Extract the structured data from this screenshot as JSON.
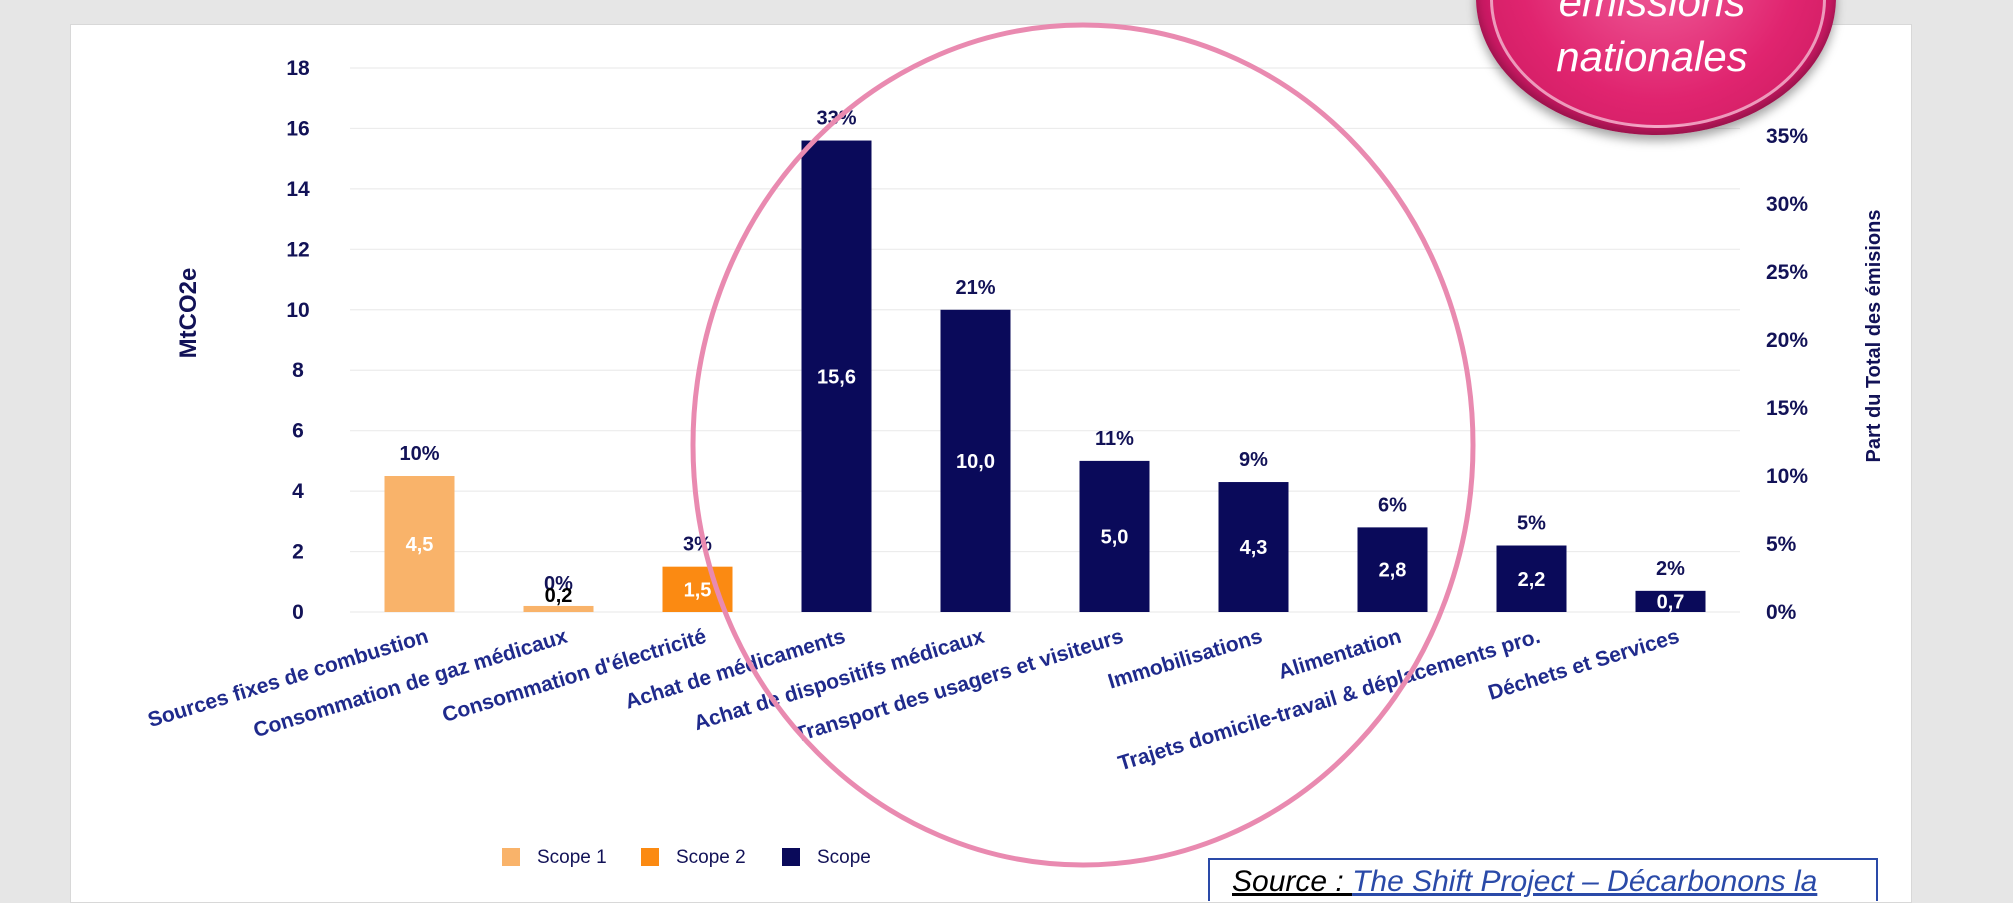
{
  "colors": {
    "scope1": "#f9b36a",
    "scope2": "#fb8a12",
    "scope3": "#0a0a5a",
    "text": "#121257",
    "category": "#1f2a8c",
    "circle": "#e98ab0",
    "badge": "#e0246f"
  },
  "chart_data": {
    "type": "bar",
    "ylabel": "MtCO2e",
    "y2label": "Part du Total des émisions",
    "ylim": [
      0,
      18
    ],
    "y_ticks": [
      0,
      2,
      4,
      6,
      8,
      10,
      12,
      14,
      16,
      18
    ],
    "y2lim": [
      0,
      0.4
    ],
    "y2_ticks": [
      "0%",
      "5%",
      "10%",
      "15%",
      "20%",
      "25%",
      "30%",
      "35%"
    ],
    "grid": true,
    "categories": [
      "Sources fixes de combustion",
      "Consommation de gaz médicaux",
      "Consommation d'électricité",
      "Achat de médicaments",
      "Achat de dispositifs médicaux",
      "Transport des usagers et visiteurs",
      "Immobilisations",
      "Alimentation",
      "Trajets domicile-travail & déplacements pro.",
      "Déchets et Services"
    ],
    "values": [
      4.5,
      0.2,
      1.5,
      15.6,
      10.0,
      5.0,
      4.3,
      2.8,
      2.2,
      0.7
    ],
    "value_labels": [
      "4,5",
      "0,2",
      "1,5",
      "15,6",
      "10,0",
      "5,0",
      "4,3",
      "2,8",
      "2,2",
      "0,7"
    ],
    "percent_labels": [
      "10%",
      "0%",
      "3%",
      "33%",
      "21%",
      "11%",
      "9%",
      "6%",
      "5%",
      "2%"
    ],
    "scope": [
      1,
      1,
      2,
      3,
      3,
      3,
      3,
      3,
      3,
      3
    ],
    "legend": [
      "Scope 1",
      "Scope 2",
      "Scope"
    ],
    "legend_position": "bottom"
  },
  "badge": {
    "line1": "émissions",
    "line2": "nationales"
  },
  "source": {
    "prefix": "Source : ",
    "link": "The Shift Project – Décarbonons la"
  }
}
